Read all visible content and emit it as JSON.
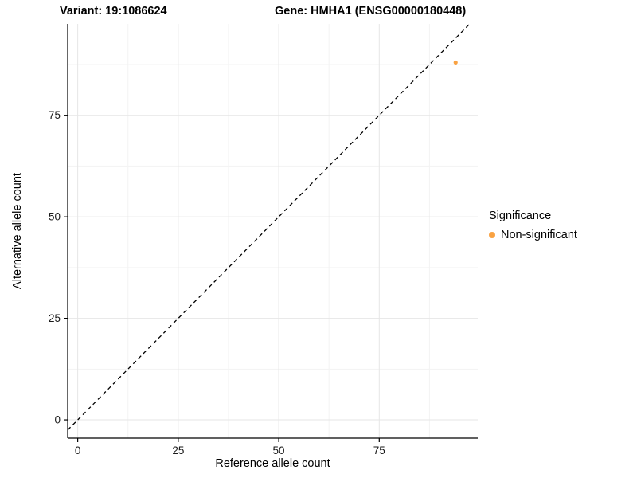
{
  "titles": {
    "variant": "Variant: 19:1086624",
    "gene": "Gene: HMHA1 (ENSG00000180448)"
  },
  "chart_data": {
    "type": "scatter",
    "title": "Variant: 19:1086624   Gene: HMHA1 (ENSG00000180448)",
    "xlabel": "Reference allele count",
    "ylabel": "Alternative allele count",
    "xlim": [
      -2.5,
      99.5
    ],
    "ylim": [
      -4.5,
      97.5
    ],
    "xticks": [
      0,
      25,
      50,
      75
    ],
    "yticks": [
      0,
      25,
      50,
      75
    ],
    "minor_gridlines_x": [
      12.5,
      37.5,
      62.5,
      87.5
    ],
    "minor_gridlines_y": [
      12.5,
      37.5,
      62.5,
      87.5
    ],
    "grid": true,
    "points": [
      {
        "x": 94,
        "y": 88,
        "series": "Non-significant"
      }
    ],
    "reference_line": {
      "type": "identity",
      "equation": "y = x",
      "style": "dashed",
      "color": "#000000"
    },
    "legend": {
      "title": "Significance",
      "position": "right",
      "entries": [
        {
          "label": "Non-significant",
          "color": "#F9A242"
        }
      ]
    },
    "colors": {
      "point": "#F9A242",
      "grid_major": "#e6e6e6",
      "grid_minor": "#f3f3f3",
      "axis": "#000000",
      "tick_label": "#1a1a1a"
    }
  }
}
